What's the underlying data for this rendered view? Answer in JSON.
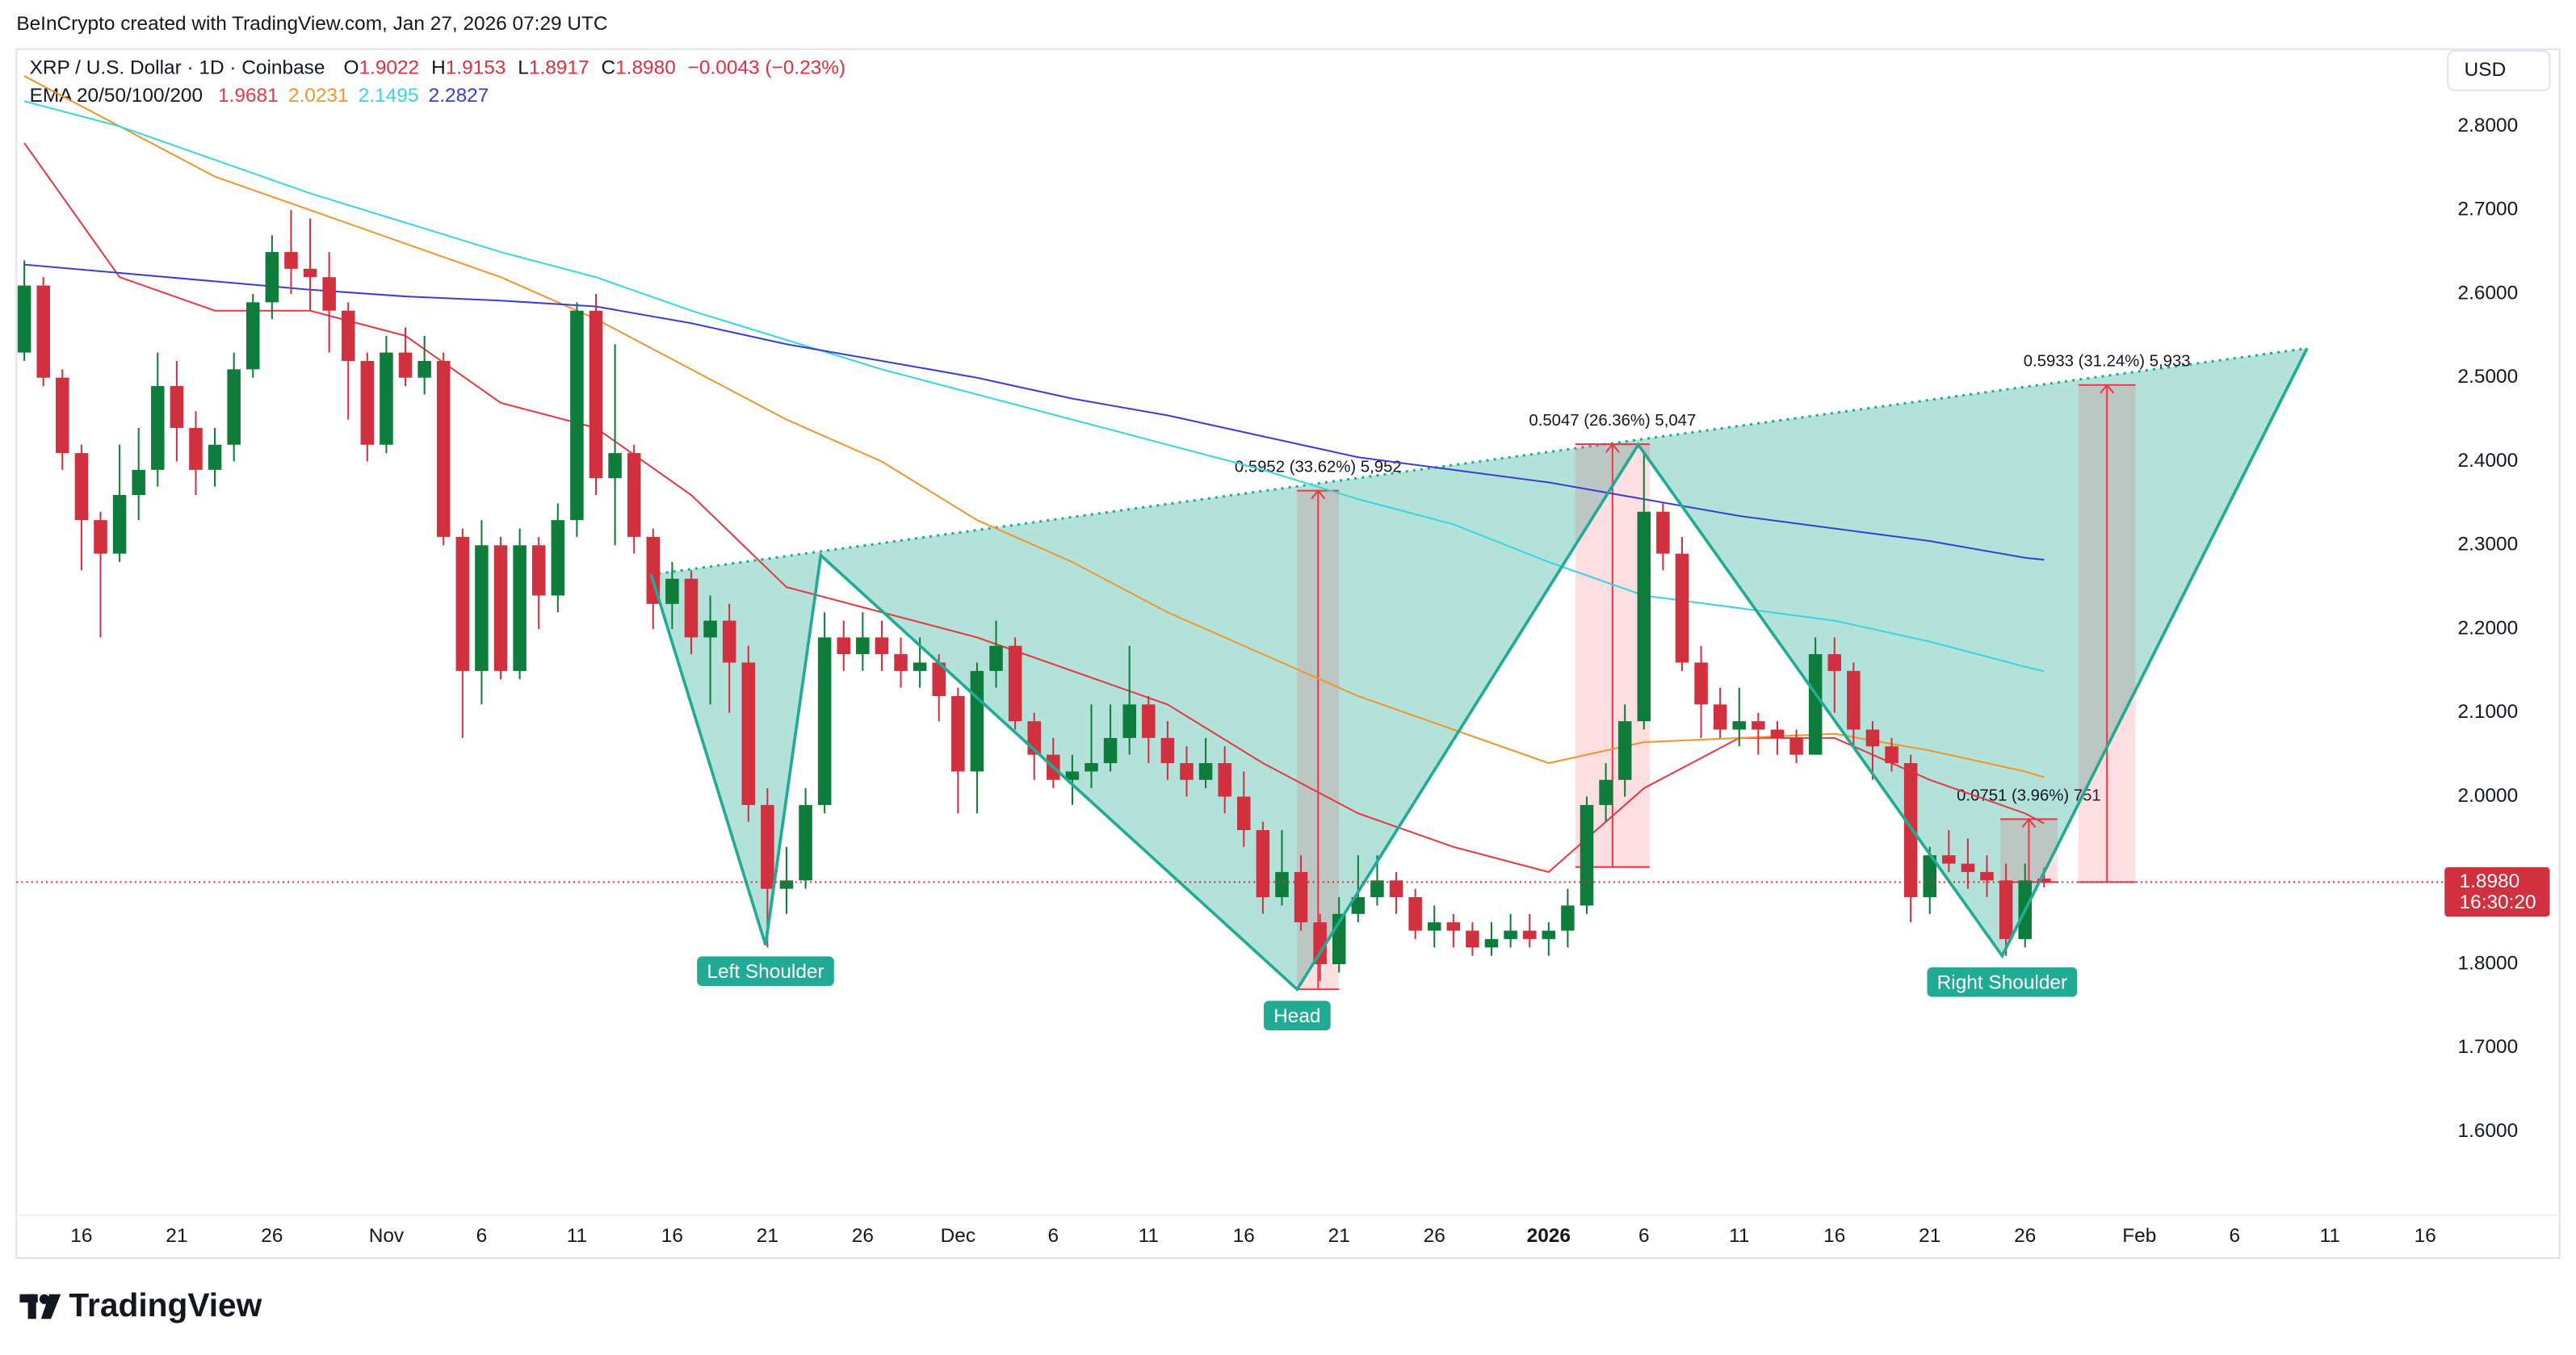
{
  "chart_data": {
    "type": "candlestick",
    "credit": "BeInCrypto created with TradingView.com, Jan 27, 2026 07:29 UTC",
    "symbol": "XRP / U.S. Dollar · 1D · Coinbase",
    "ohlc_legend": [
      {
        "key": "O",
        "value": "1.9022"
      },
      {
        "key": "H",
        "value": "1.9153"
      },
      {
        "key": "L",
        "value": "1.8917"
      },
      {
        "key": "C",
        "value": "1.8980"
      }
    ],
    "change": "−0.0043 (−0.23%)",
    "ema_title": "EMA 20/50/100/200",
    "currency": "USD",
    "brand": "TradingView",
    "colors": {
      "up": "#0e7c3a",
      "down": "#d1303e"
    },
    "xlim": [
      -0.5,
      126.5
    ],
    "xticks": [
      {
        "value": 3,
        "label": "16"
      },
      {
        "value": 8,
        "label": "21"
      },
      {
        "value": 13,
        "label": "26"
      },
      {
        "value": 19,
        "label": "Nov"
      },
      {
        "value": 24,
        "label": "6"
      },
      {
        "value": 29,
        "label": "11"
      },
      {
        "value": 34,
        "label": "16"
      },
      {
        "value": 39,
        "label": "21"
      },
      {
        "value": 44,
        "label": "26"
      },
      {
        "value": 49,
        "label": "Dec"
      },
      {
        "value": 54,
        "label": "6"
      },
      {
        "value": 59,
        "label": "11"
      },
      {
        "value": 64,
        "label": "16"
      },
      {
        "value": 69,
        "label": "21"
      },
      {
        "value": 74,
        "label": "26"
      },
      {
        "value": 80,
        "label": "2026"
      },
      {
        "value": 85,
        "label": "6"
      },
      {
        "value": 90,
        "label": "11"
      },
      {
        "value": 95,
        "label": "16"
      },
      {
        "value": 100,
        "label": "21"
      },
      {
        "value": 105,
        "label": "26"
      },
      {
        "value": 111,
        "label": "Feb"
      },
      {
        "value": 116,
        "label": "6"
      },
      {
        "value": 121,
        "label": "11"
      },
      {
        "value": 126,
        "label": "16"
      }
    ],
    "ylim": [
      1.51,
      2.89
    ],
    "yticks": [
      {
        "value": 2.8,
        "label": "2.8000"
      },
      {
        "value": 2.7,
        "label": "2.7000"
      },
      {
        "value": 2.6,
        "label": "2.6000"
      },
      {
        "value": 2.5,
        "label": "2.5000"
      },
      {
        "value": 2.4,
        "label": "2.4000"
      },
      {
        "value": 2.3,
        "label": "2.3000"
      },
      {
        "value": 2.2,
        "label": "2.2000"
      },
      {
        "value": 2.1,
        "label": "2.1000"
      },
      {
        "value": 2.0,
        "label": "2.0000"
      },
      {
        "value": 1.9,
        "label": "1.9000"
      },
      {
        "value": 1.8,
        "label": "1.8000"
      },
      {
        "value": 1.7,
        "label": "1.7000"
      },
      {
        "value": 1.6,
        "label": "1.6000"
      }
    ],
    "grid": false,
    "x": [
      0,
      1,
      2,
      3,
      4,
      5,
      6,
      7,
      8,
      9,
      10,
      11,
      12,
      13,
      14,
      15,
      16,
      17,
      18,
      19,
      20,
      21,
      22,
      23,
      24,
      25,
      26,
      27,
      28,
      29,
      30,
      31,
      32,
      33,
      34,
      35,
      36,
      37,
      38,
      39,
      40,
      41,
      42,
      43,
      44,
      45,
      46,
      47,
      48,
      49,
      50,
      51,
      52,
      53,
      54,
      55,
      56,
      57,
      58,
      59,
      60,
      61,
      62,
      63,
      64,
      65,
      66,
      67,
      68,
      69,
      70,
      71,
      72,
      73,
      74,
      75,
      76,
      77,
      78,
      79,
      80,
      81,
      82,
      83,
      84,
      85,
      86,
      87,
      88,
      89,
      90,
      91,
      92,
      93,
      94,
      95,
      96,
      97,
      98,
      99,
      100,
      101,
      102,
      103,
      104,
      105,
      106
    ],
    "open": [
      2.53,
      2.61,
      2.5,
      2.41,
      2.33,
      2.29,
      2.36,
      2.39,
      2.49,
      2.44,
      2.39,
      2.42,
      2.51,
      2.59,
      2.65,
      2.63,
      2.62,
      2.58,
      2.52,
      2.42,
      2.53,
      2.5,
      2.52,
      2.31,
      2.15,
      2.3,
      2.15,
      2.3,
      2.24,
      2.33,
      2.58,
      2.38,
      2.41,
      2.31,
      2.23,
      2.26,
      2.19,
      2.21,
      2.16,
      1.99,
      1.89,
      1.9,
      1.99,
      2.19,
      2.17,
      2.19,
      2.17,
      2.15,
      2.16,
      2.12,
      2.03,
      2.15,
      2.18,
      2.09,
      2.05,
      2.02,
      2.03,
      2.04,
      2.07,
      2.11,
      2.07,
      2.04,
      2.02,
      2.04,
      2.0,
      1.96,
      1.88,
      1.91,
      1.85,
      1.8,
      1.86,
      1.88,
      1.9,
      1.88,
      1.84,
      1.85,
      1.84,
      1.82,
      1.83,
      1.84,
      1.83,
      1.84,
      1.87,
      1.99,
      2.02,
      2.09,
      2.34,
      2.29,
      2.16,
      2.11,
      2.08,
      2.09,
      2.08,
      2.07,
      2.05,
      2.17,
      2.15,
      2.08,
      2.06,
      2.04,
      1.88,
      1.93,
      1.92,
      1.91,
      1.9,
      1.83,
      1.9022
    ],
    "high": [
      2.64,
      2.62,
      2.51,
      2.42,
      2.34,
      2.42,
      2.44,
      2.53,
      2.52,
      2.46,
      2.44,
      2.53,
      2.6,
      2.67,
      2.7,
      2.69,
      2.65,
      2.59,
      2.53,
      2.55,
      2.56,
      2.55,
      2.53,
      2.32,
      2.33,
      2.31,
      2.32,
      2.31,
      2.35,
      2.59,
      2.6,
      2.54,
      2.42,
      2.32,
      2.28,
      2.27,
      2.24,
      2.23,
      2.18,
      2.01,
      1.94,
      2.01,
      2.22,
      2.21,
      2.22,
      2.21,
      2.19,
      2.19,
      2.17,
      2.13,
      2.16,
      2.21,
      2.19,
      2.1,
      2.07,
      2.05,
      2.11,
      2.11,
      2.18,
      2.12,
      2.09,
      2.06,
      2.07,
      2.06,
      2.03,
      1.97,
      1.96,
      1.93,
      1.86,
      1.88,
      1.93,
      1.93,
      1.91,
      1.89,
      1.87,
      1.86,
      1.85,
      1.85,
      1.86,
      1.86,
      1.85,
      1.89,
      2.0,
      2.04,
      2.11,
      2.41,
      2.35,
      2.31,
      2.18,
      2.13,
      2.13,
      2.1,
      2.09,
      2.08,
      2.19,
      2.19,
      2.16,
      2.09,
      2.07,
      2.05,
      1.94,
      1.96,
      1.95,
      1.93,
      1.92,
      1.92,
      1.9153
    ],
    "low": [
      2.52,
      2.49,
      2.39,
      2.27,
      2.19,
      2.28,
      2.33,
      2.37,
      2.4,
      2.36,
      2.37,
      2.4,
      2.5,
      2.57,
      2.6,
      2.58,
      2.53,
      2.45,
      2.4,
      2.41,
      2.49,
      2.48,
      2.3,
      2.07,
      2.11,
      2.14,
      2.14,
      2.2,
      2.22,
      2.31,
      2.36,
      2.3,
      2.29,
      2.2,
      2.2,
      2.17,
      2.11,
      2.1,
      1.97,
      1.82,
      1.86,
      1.89,
      1.98,
      2.15,
      2.15,
      2.15,
      2.13,
      2.13,
      2.09,
      1.98,
      1.98,
      2.13,
      2.08,
      2.02,
      2.01,
      1.99,
      2.01,
      2.03,
      2.05,
      2.04,
      2.02,
      2.0,
      2.01,
      1.98,
      1.94,
      1.86,
      1.87,
      1.84,
      1.78,
      1.79,
      1.85,
      1.87,
      1.86,
      1.83,
      1.82,
      1.82,
      1.81,
      1.81,
      1.82,
      1.82,
      1.81,
      1.82,
      1.86,
      1.97,
      2.0,
      2.08,
      2.27,
      2.15,
      2.07,
      2.07,
      2.06,
      2.05,
      2.05,
      2.04,
      2.05,
      2.1,
      2.06,
      2.02,
      2.03,
      1.85,
      1.86,
      1.91,
      1.89,
      1.88,
      1.81,
      1.82,
      1.8917
    ],
    "close": [
      2.61,
      2.5,
      2.41,
      2.33,
      2.29,
      2.36,
      2.39,
      2.49,
      2.44,
      2.39,
      2.42,
      2.51,
      2.59,
      2.65,
      2.63,
      2.62,
      2.58,
      2.52,
      2.42,
      2.53,
      2.5,
      2.52,
      2.31,
      2.15,
      2.3,
      2.15,
      2.3,
      2.24,
      2.33,
      2.58,
      2.38,
      2.41,
      2.31,
      2.23,
      2.26,
      2.19,
      2.21,
      2.16,
      1.99,
      1.89,
      1.9,
      1.99,
      2.19,
      2.17,
      2.19,
      2.17,
      2.15,
      2.16,
      2.12,
      2.03,
      2.15,
      2.18,
      2.09,
      2.05,
      2.02,
      2.03,
      2.04,
      2.07,
      2.11,
      2.07,
      2.04,
      2.02,
      2.04,
      2.0,
      1.96,
      1.88,
      1.91,
      1.85,
      1.8,
      1.86,
      1.88,
      1.9,
      1.88,
      1.84,
      1.85,
      1.84,
      1.82,
      1.83,
      1.84,
      1.83,
      1.84,
      1.87,
      1.99,
      2.02,
      2.09,
      2.34,
      2.29,
      2.16,
      2.11,
      2.08,
      2.09,
      2.08,
      2.07,
      2.05,
      2.17,
      2.15,
      2.08,
      2.06,
      2.04,
      1.88,
      1.93,
      1.92,
      1.91,
      1.9,
      1.83,
      1.9,
      1.898
    ],
    "overlays": [
      {
        "color": "#e53945",
        "value_label": "1.9681",
        "x": [
          0,
          5,
          10,
          15,
          20,
          25,
          30,
          35,
          40,
          45,
          50,
          55,
          60,
          65,
          70,
          75,
          80,
          85,
          90,
          95,
          100,
          105,
          106
        ],
        "values": [
          2.78,
          2.62,
          2.58,
          2.58,
          2.55,
          2.47,
          2.44,
          2.36,
          2.25,
          2.22,
          2.19,
          2.15,
          2.11,
          2.04,
          1.98,
          1.94,
          1.91,
          2.01,
          2.07,
          2.07,
          2.02,
          1.98,
          1.9681
        ]
      },
      {
        "color": "#f0962f",
        "value_label": "2.0231",
        "x": [
          0,
          5,
          10,
          15,
          20,
          25,
          30,
          35,
          40,
          45,
          50,
          55,
          60,
          65,
          70,
          75,
          80,
          85,
          90,
          95,
          100,
          105,
          106
        ],
        "values": [
          2.86,
          2.8,
          2.74,
          2.7,
          2.66,
          2.62,
          2.57,
          2.51,
          2.45,
          2.4,
          2.33,
          2.28,
          2.22,
          2.17,
          2.12,
          2.08,
          2.04,
          2.065,
          2.07,
          2.075,
          2.055,
          2.03,
          2.0231
        ]
      },
      {
        "color": "#39d5e0",
        "value_label": "2.1495",
        "x": [
          0,
          5,
          10,
          15,
          20,
          25,
          30,
          35,
          40,
          45,
          50,
          55,
          60,
          65,
          70,
          75,
          80,
          85,
          90,
          95,
          100,
          105,
          106
        ],
        "values": [
          2.83,
          2.8,
          2.76,
          2.72,
          2.685,
          2.65,
          2.62,
          2.58,
          2.545,
          2.51,
          2.48,
          2.45,
          2.42,
          2.39,
          2.355,
          2.325,
          2.28,
          2.24,
          2.225,
          2.21,
          2.185,
          2.155,
          2.1495
        ]
      },
      {
        "color": "#3a3fd1",
        "value_label": "2.2827",
        "x": [
          0,
          5,
          10,
          15,
          20,
          25,
          30,
          35,
          40,
          45,
          50,
          55,
          60,
          65,
          70,
          75,
          80,
          85,
          90,
          95,
          100,
          105,
          106
        ],
        "values": [
          2.635,
          2.625,
          2.615,
          2.605,
          2.597,
          2.592,
          2.585,
          2.565,
          2.54,
          2.52,
          2.5,
          2.475,
          2.455,
          2.43,
          2.405,
          2.39,
          2.375,
          2.355,
          2.335,
          2.32,
          2.305,
          2.285,
          2.2827
        ]
      }
    ],
    "pattern": {
      "color": "#22ab94",
      "x": [
        32.9,
        38.9,
        41.8,
        66.8,
        84.7,
        103.8,
        119.8
      ],
      "y": [
        2.265,
        1.823,
        2.288,
        1.77,
        2.42,
        1.81,
        2.535
      ],
      "labels": [
        null,
        "Left Shoulder",
        null,
        "Head",
        null,
        "Right Shoulder",
        null
      ]
    },
    "measures": [
      {
        "x": [
          66.8,
          69.0
        ],
        "from": 1.77,
        "to": 2.3652,
        "label": "0.5952 (33.62%) 5,952"
      },
      {
        "x": [
          81.4,
          85.3
        ],
        "from": 1.916,
        "to": 2.4207,
        "label": "0.5047 (26.36%) 5,047"
      },
      {
        "x": [
          103.7,
          106.7
        ],
        "from": 1.898,
        "to": 1.9731,
        "label": "0.0751 (3.96%) 751"
      },
      {
        "x": [
          107.8,
          110.8
        ],
        "from": 1.898,
        "to": 2.4913,
        "label": "0.5933 (31.24%) 5,933"
      }
    ],
    "last_price": {
      "value": 1.898,
      "label": "1.8980",
      "countdown": "16:30:20",
      "color": "#d1303e"
    }
  }
}
